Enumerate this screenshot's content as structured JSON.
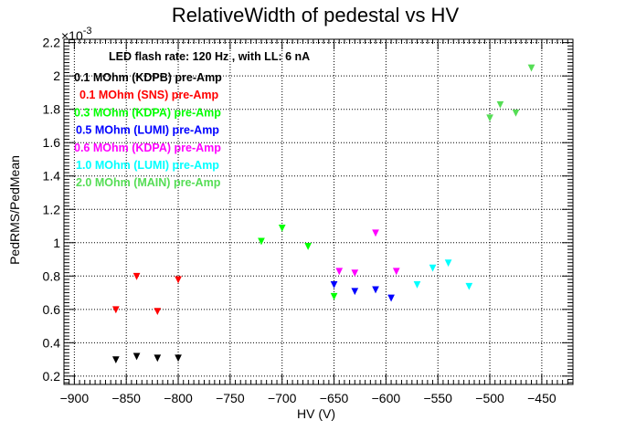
{
  "chart_data": {
    "type": "scatter",
    "title": "RelativeWidth of pedestal vs HV",
    "xlabel": "HV (V)",
    "ylabel": "PedRMS/PedMean",
    "y_multiplier": "×10",
    "y_exponent": "-3",
    "xlim": [
      -910,
      -420
    ],
    "ylim": [
      0.15,
      2.22
    ],
    "grid": true,
    "x_ticks": [
      -900,
      -850,
      -800,
      -750,
      -700,
      -650,
      -600,
      -550,
      -500,
      -450
    ],
    "x_tick_labels": [
      "−900",
      "−850",
      "−800",
      "−750",
      "−700",
      "−650",
      "−600",
      "−550",
      "−500",
      "−450"
    ],
    "y_ticks": [
      0.2,
      0.4,
      0.6,
      0.8,
      1,
      1.2,
      1.4,
      1.6,
      1.8,
      2,
      2.2
    ],
    "y_tick_labels": [
      "0.2",
      "0.4",
      "0.6",
      "0.8",
      "1",
      "1.2",
      "1.4",
      "1.6",
      "1.8",
      "2",
      "2.2"
    ],
    "header_note": "LED flash rate: 120 Hz , with LL: 6 nA",
    "series": [
      {
        "name": "0.1 MOhm (KDPB) pre-Amp",
        "color": "#000000",
        "x": [
          -860,
          -840,
          -820,
          -800
        ],
        "y": [
          0.3,
          0.32,
          0.31,
          0.31
        ]
      },
      {
        "name": "0.1 MOhm (SNS) pre-Amp",
        "color": "#ff0000",
        "x": [
          -860,
          -840,
          -820,
          -800
        ],
        "y": [
          0.6,
          0.8,
          0.59,
          0.78
        ]
      },
      {
        "name": "0.3 MOhm (KDPA) pre-Amp",
        "color": "#00ff00",
        "x": [
          -720,
          -700,
          -675,
          -650
        ],
        "y": [
          1.01,
          1.09,
          0.98,
          0.68
        ]
      },
      {
        "name": "0.5 MOhm (LUMI) pre-Amp",
        "color": "#0000ff",
        "x": [
          -650,
          -630,
          -610,
          -595
        ],
        "y": [
          0.75,
          0.71,
          0.72,
          0.67
        ]
      },
      {
        "name": "0.6 MOhm (KDPA) pre-Amp",
        "color": "#ff00ff",
        "x": [
          -645,
          -630,
          -610,
          -590
        ],
        "y": [
          0.83,
          0.82,
          1.06,
          0.83
        ]
      },
      {
        "name": "1.0 MOhm (LUMI) pre-Amp",
        "color": "#00ffff",
        "x": [
          -570,
          -555,
          -540,
          -520
        ],
        "y": [
          0.75,
          0.85,
          0.88,
          0.74
        ]
      },
      {
        "name": "2.0 MOhm (MAIN) pre-Amp",
        "color": "#55dd55",
        "x": [
          -500,
          -490,
          -475,
          -460
        ],
        "y": [
          1.75,
          1.83,
          1.78,
          2.05
        ]
      }
    ]
  }
}
